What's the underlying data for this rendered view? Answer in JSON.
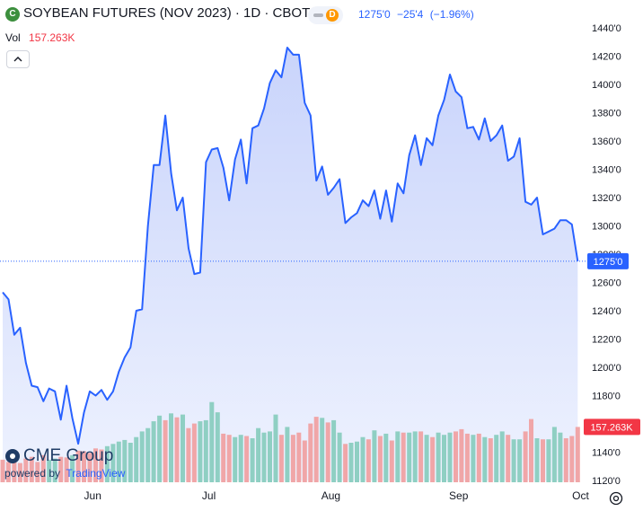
{
  "header": {
    "symbol_logo_text": "C",
    "title": "SOYBEAN FUTURES (NOV 2023) · 1D · CBOT",
    "badge_letter": "D",
    "last": "1275'0",
    "change": "−25'4",
    "change_pct": "(−1.96%)"
  },
  "volume_legend": {
    "label": "Vol",
    "value": "157.263K"
  },
  "logo": {
    "name": "CME Group",
    "powered_by": "powered by",
    "provider": "TradingView"
  },
  "colors": {
    "line": "#2962ff",
    "area_top": "#c9d4fb",
    "area_bottom": "#eef2fe",
    "volume_up": "#8fcfc3",
    "volume_down": "#f0a6a8",
    "price_tag": "#2962ff",
    "volume_tag": "#f23645",
    "axis_text": "#131722"
  },
  "chart_data": {
    "type": "area",
    "x_axis_labels": [
      "Jun",
      "Jul",
      "Aug",
      "Sep",
      "Oct"
    ],
    "x_axis_label_index": [
      15.5,
      35.5,
      56.5,
      78.5,
      99.5
    ],
    "y_ticks": [
      "1120'0",
      "1140'0",
      "1160'0",
      "1180'0",
      "1200'0",
      "1220'0",
      "1240'0",
      "1260'0",
      "1280'0",
      "1300'0",
      "1320'0",
      "1340'0",
      "1360'0",
      "1380'0",
      "1400'0",
      "1420'0",
      "1440'0"
    ],
    "ylim": [
      1120,
      1440
    ],
    "last_price_label": "1275'0",
    "last_price": 1275,
    "volume_label": "157.263K",
    "volume_max": 210,
    "series": [
      {
        "values": [
          1253,
          1248,
          1223,
          1228,
          1203,
          1187,
          1186,
          1176,
          1185,
          1183,
          1163,
          1187,
          1164,
          1146,
          1168,
          1183,
          1180,
          1184,
          1177,
          1183,
          1197,
          1207,
          1214,
          1240,
          1241,
          1300,
          1343,
          1343,
          1378,
          1337,
          1311,
          1320,
          1284,
          1266,
          1267,
          1345,
          1354,
          1355,
          1341,
          1318,
          1347,
          1361,
          1330,
          1369,
          1371,
          1383,
          1401,
          1410,
          1405,
          1426,
          1421,
          1421,
          1387,
          1378,
          1332,
          1342,
          1322,
          1327,
          1333,
          1302,
          1306,
          1309,
          1318,
          1314,
          1325,
          1305,
          1325,
          1303,
          1330,
          1323,
          1350,
          1364,
          1343,
          1362,
          1357,
          1378,
          1389,
          1407,
          1395,
          1391,
          1369,
          1370,
          1361,
          1376,
          1360,
          1364,
          1371,
          1346,
          1349,
          1362,
          1317,
          1315,
          1320,
          1294,
          1296,
          1298,
          1304,
          1304,
          1301,
          1275
        ],
        "volume": [
          40,
          36,
          38,
          34,
          42,
          45,
          36,
          48,
          40,
          42,
          45,
          44,
          48,
          56,
          55,
          52,
          60,
          58,
          64,
          68,
          72,
          75,
          70,
          80,
          90,
          96,
          108,
          118,
          110,
          122,
          115,
          120,
          96,
          104,
          108,
          110,
          142,
          124,
          86,
          84,
          80,
          84,
          82,
          78,
          96,
          88,
          90,
          120,
          84,
          98,
          84,
          88,
          74,
          104,
          116,
          114,
          106,
          110,
          88,
          68,
          70,
          72,
          80,
          76,
          92,
          82,
          86,
          74,
          90,
          88,
          88,
          90,
          90,
          84,
          80,
          88,
          84,
          88,
          90,
          94,
          86,
          84,
          86,
          80,
          78,
          84,
          90,
          84,
          76,
          76,
          90,
          112,
          78,
          76,
          76,
          98,
          88,
          78,
          82,
          98
        ],
        "volume_up": [
          false,
          false,
          false,
          false,
          false,
          false,
          false,
          false,
          true,
          true,
          false,
          false,
          true,
          false,
          false,
          false,
          false,
          false,
          true,
          true,
          true,
          true,
          true,
          true,
          true,
          true,
          true,
          true,
          false,
          true,
          false,
          true,
          false,
          false,
          true,
          true,
          true,
          true,
          false,
          false,
          true,
          true,
          false,
          true,
          true,
          true,
          true,
          true,
          false,
          true,
          false,
          false,
          false,
          false,
          false,
          true,
          false,
          true,
          true,
          false,
          true,
          true,
          true,
          false,
          true,
          false,
          true,
          false,
          true,
          false,
          true,
          true,
          false,
          true,
          false,
          true,
          true,
          true,
          false,
          false,
          false,
          true,
          false,
          true,
          false,
          true,
          true,
          false,
          true,
          true,
          false,
          false,
          true,
          false,
          true,
          true,
          true,
          false,
          false,
          false
        ]
      }
    ]
  }
}
